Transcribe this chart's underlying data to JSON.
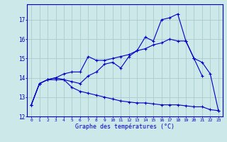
{
  "background_color": "#cce8e8",
  "grid_color": "#aacccc",
  "line_color": "#0000cc",
  "axis_color": "#0000cc",
  "title": "Graphe des températures (°C)",
  "hours": [
    0,
    1,
    2,
    3,
    4,
    5,
    6,
    7,
    8,
    9,
    10,
    11,
    12,
    13,
    14,
    15,
    16,
    17,
    18,
    19,
    20,
    21,
    22,
    23
  ],
  "line1": [
    12.6,
    13.7,
    13.9,
    13.9,
    13.9,
    13.8,
    13.7,
    14.1,
    14.3,
    14.7,
    14.8,
    14.5,
    15.1,
    15.4,
    16.1,
    15.9,
    17.0,
    17.1,
    17.3,
    15.9,
    15.0,
    14.8,
    14.2,
    12.3
  ],
  "line2": [
    12.6,
    13.7,
    13.9,
    14.0,
    14.2,
    14.3,
    14.3,
    15.1,
    14.9,
    14.9,
    15.0,
    15.1,
    15.2,
    15.4,
    15.5,
    15.7,
    15.8,
    16.0,
    15.9,
    15.9,
    15.0,
    14.1,
    null,
    null
  ],
  "line3": [
    12.6,
    13.7,
    13.9,
    14.0,
    13.9,
    13.5,
    13.3,
    13.2,
    13.1,
    13.0,
    12.9,
    12.8,
    12.75,
    12.7,
    12.7,
    12.65,
    12.6,
    12.6,
    12.6,
    12.55,
    12.5,
    12.5,
    12.35,
    12.3
  ],
  "ylim_min": 12,
  "ylim_max": 17.8,
  "yticks": [
    12,
    13,
    14,
    15,
    16,
    17
  ],
  "xticks": [
    0,
    1,
    2,
    3,
    4,
    5,
    6,
    7,
    8,
    9,
    10,
    11,
    12,
    13,
    14,
    15,
    16,
    17,
    18,
    19,
    20,
    21,
    22,
    23
  ]
}
